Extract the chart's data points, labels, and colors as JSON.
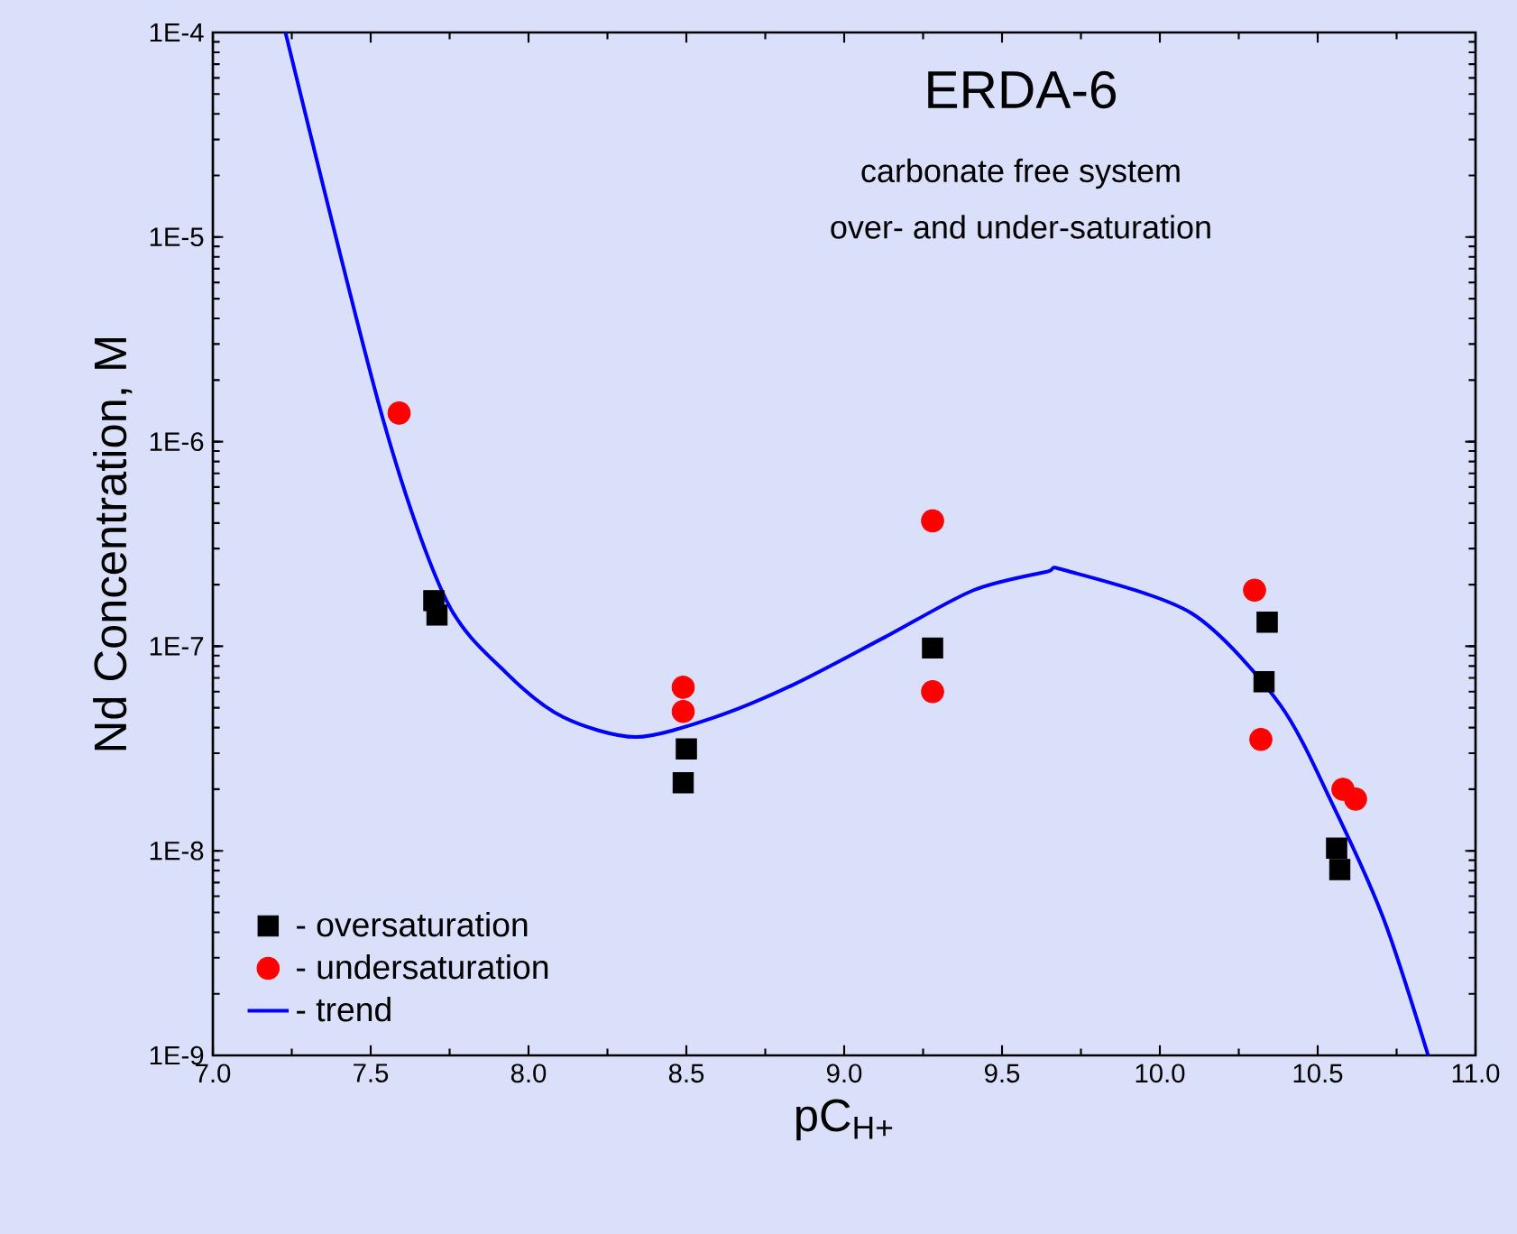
{
  "chart_data": {
    "type": "scatter",
    "title": "ERDA-6",
    "subtitle": "carbonate free system",
    "annotations": [
      "over- and under-saturation"
    ],
    "xlabel": "pC$_{H+}$",
    "ylabel": "Nd Concentration, M",
    "log": "y",
    "legend": "bottom left",
    "grid": false,
    "xlim": [
      7.0,
      11.0
    ],
    "xticks": [
      {
        "value": 7.0,
        "label": "7.0"
      },
      {
        "value": 7.5,
        "label": "7.5"
      },
      {
        "value": 8.0,
        "label": "8.0"
      },
      {
        "value": 8.5,
        "label": "8.5"
      },
      {
        "value": 9.0,
        "label": "9.0"
      },
      {
        "value": 9.5,
        "label": "9.5"
      },
      {
        "value": 10.0,
        "label": "10.0"
      },
      {
        "value": 10.5,
        "label": "10.5"
      },
      {
        "value": 11.0,
        "label": "11.0"
      }
    ],
    "ylim": [
      1e-09,
      0.0001
    ],
    "yticks": [
      {
        "value": 1e-09,
        "label": "1E-9"
      },
      {
        "value": 1e-08,
        "label": "1E-8"
      },
      {
        "value": 1e-07,
        "label": "1E-7"
      },
      {
        "value": 1e-06,
        "label": "1E-6"
      },
      {
        "value": 1e-05,
        "label": "1E-5"
      },
      {
        "value": 0.0001,
        "label": "1E-4"
      }
    ],
    "series": [
      {
        "name": "- oversaturation",
        "color": "#000000",
        "marker": "square",
        "x": [
          7.7,
          7.71,
          8.5,
          8.49,
          9.28,
          10.34,
          10.33,
          10.56,
          10.57
        ],
        "values": [
          1.67e-07,
          1.42e-07,
          3.15e-08,
          2.15e-08,
          9.8e-08,
          1.31e-07,
          6.7e-08,
          1.03e-08,
          8.1e-09
        ]
      },
      {
        "name": "- undersaturation",
        "color": "#ff0000",
        "marker": "circle",
        "x": [
          7.59,
          8.49,
          8.49,
          9.28,
          9.28,
          10.3,
          10.32,
          10.58,
          10.62
        ],
        "values": [
          1.38e-06,
          6.3e-08,
          4.8e-08,
          4.1e-07,
          6e-08,
          1.88e-07,
          3.5e-08,
          2e-08,
          1.79e-08
        ]
      },
      {
        "name": "- trend",
        "type": "line",
        "color": "#0000ff",
        "marker": "none",
        "x": [
          7.23,
          7.54,
          7.74,
          7.93,
          8.11,
          8.34,
          8.59,
          8.84,
          9.13,
          9.41,
          9.64,
          9.7,
          10.1,
          10.38,
          10.55,
          10.71,
          10.85
        ],
        "values": [
          0.0001,
          1.27e-06,
          1.67e-07,
          7.4e-08,
          4.5e-08,
          3.6e-08,
          4.5e-08,
          6.5e-08,
          1.11e-07,
          1.88e-07,
          2.31e-07,
          2.35e-07,
          1.45e-07,
          5.2e-08,
          1.65e-08,
          4.6e-09,
          1e-09
        ]
      }
    ]
  }
}
